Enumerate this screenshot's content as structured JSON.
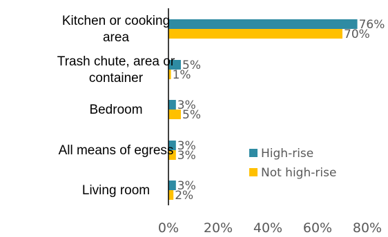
{
  "chart_data": {
    "type": "bar",
    "orientation": "horizontal",
    "title": "",
    "xlabel": "",
    "ylabel": "",
    "categories": [
      [
        "Kitchen or cooking",
        "area"
      ],
      [
        "Trash chute, area or",
        "container"
      ],
      [
        "Bedroom"
      ],
      [
        "All means of egress"
      ],
      [
        "Living room"
      ]
    ],
    "series": [
      {
        "name": "High-rise",
        "color": "#2e8ba3",
        "values": [
          76,
          5,
          3,
          3,
          3
        ],
        "labels": [
          "76%",
          "5%",
          "3%",
          "3%",
          "3%"
        ]
      },
      {
        "name": "Not high-rise",
        "color": "#ffc000",
        "values": [
          70,
          1,
          5,
          3,
          2
        ],
        "labels": [
          "70%",
          "1%",
          "5%",
          "3%",
          "2%"
        ]
      }
    ],
    "xlim": [
      0,
      80
    ],
    "xticks": [
      0,
      20,
      40,
      60,
      80
    ],
    "xtick_labels": [
      "0%",
      "20%",
      "40%",
      "60%",
      "80%"
    ],
    "grid": false,
    "legend_position": "right"
  }
}
